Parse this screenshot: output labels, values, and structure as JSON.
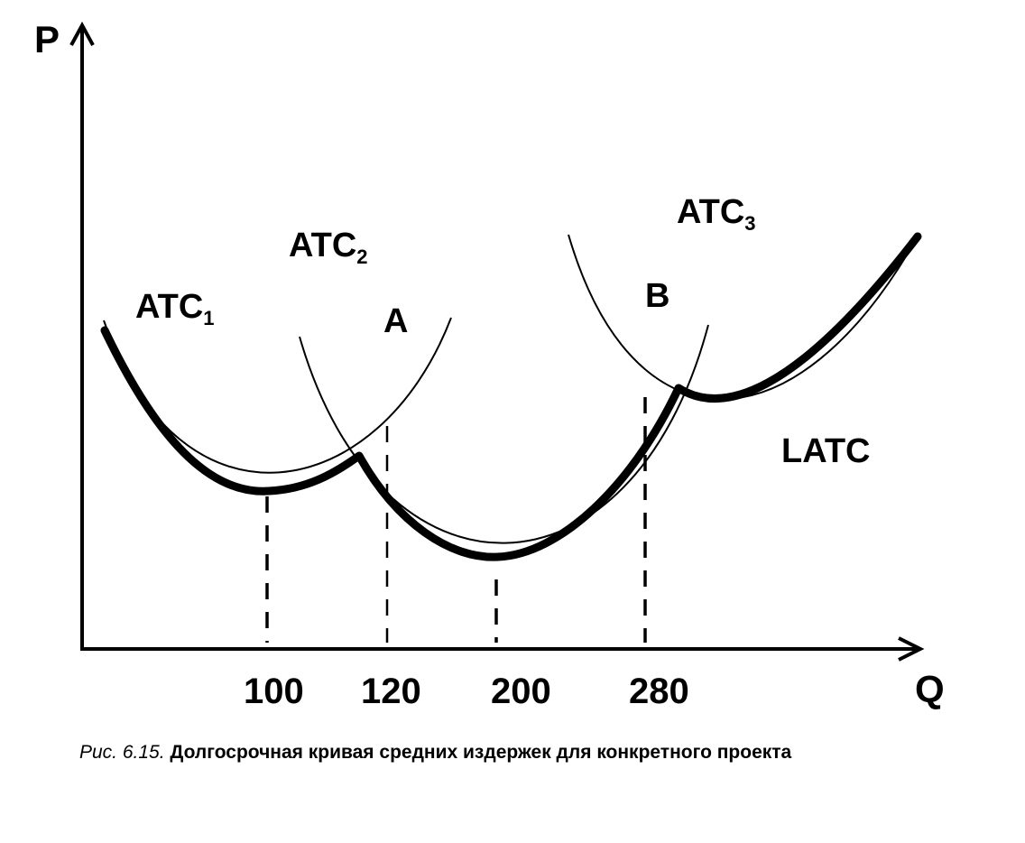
{
  "chart_data": {
    "type": "line",
    "xlabel": "Q",
    "ylabel": "P",
    "x_ticks": [
      "100",
      "120",
      "200",
      "280"
    ],
    "series": [
      {
        "name": "ATC",
        "sub": "1",
        "min_q": 100
      },
      {
        "name": "ATC",
        "sub": "2",
        "min_q": 200
      },
      {
        "name": "ATC",
        "sub": "3",
        "min_q": 300
      },
      {
        "name": "LATC",
        "sub": ""
      }
    ],
    "points": [
      {
        "label": "A",
        "q": 120
      },
      {
        "label": "B",
        "q": 280
      }
    ]
  },
  "caption": {
    "number": "Рис. 6.15.",
    "text": "Долгосрочная кривая средних издержек для конкретного проекта"
  }
}
